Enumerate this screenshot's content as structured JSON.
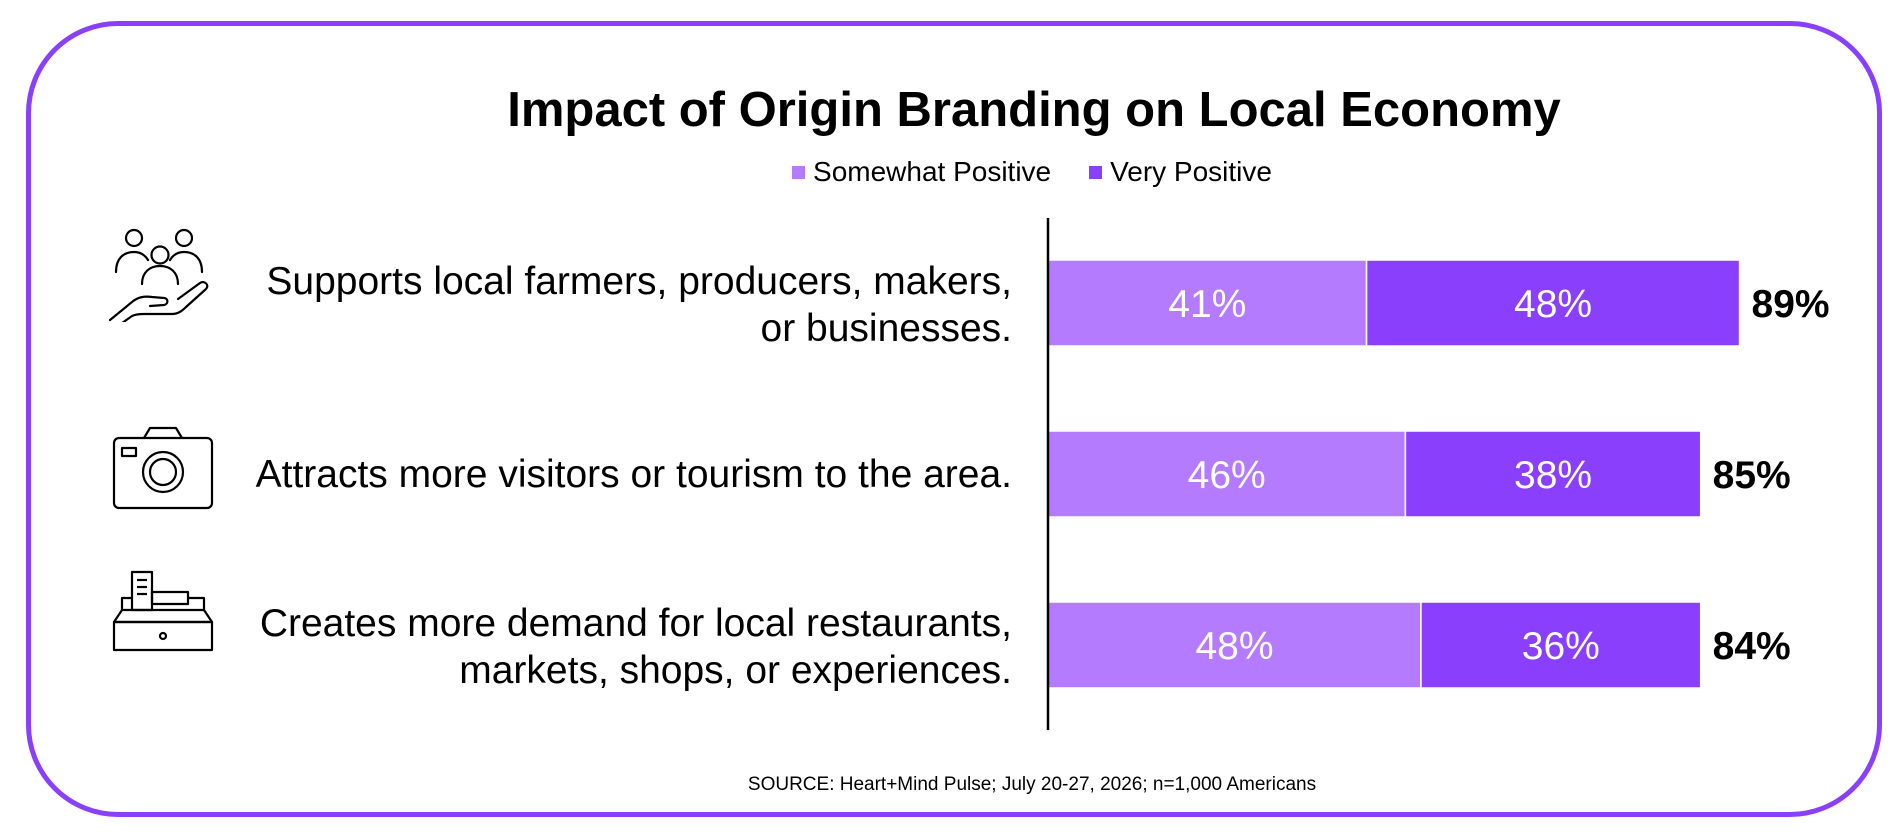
{
  "chart_data": {
    "type": "bar",
    "orientation": "horizontal",
    "stacked": true,
    "title": "Impact of Origin Branding on Local Economy",
    "categories": [
      [
        "Supports local farmers, producers, makers,",
        "or businesses."
      ],
      [
        "Attracts more visitors or tourism to the area."
      ],
      [
        "Creates more demand for local restaurants,",
        "markets, shops, or experiences."
      ]
    ],
    "series": [
      {
        "name": "Somewhat Positive",
        "color": "#B57BFF",
        "values": [
          41,
          46,
          48
        ],
        "labels": [
          "41%",
          "46%",
          "48%"
        ]
      },
      {
        "name": "Very Positive",
        "color": "#8A3FFC",
        "values": [
          48,
          38,
          36
        ],
        "labels": [
          "48%",
          "38%",
          "36%"
        ]
      }
    ],
    "totals": [
      "89%",
      "85%",
      "84%"
    ],
    "xlim": [
      0,
      100
    ],
    "grid": false,
    "legend_position": "top-center",
    "icons": [
      "hand-holding-people-icon",
      "camera-icon",
      "cash-register-icon"
    ]
  },
  "source_note": "SOURCE: Heart+Mind Pulse; July 20-27, 2026; n=1,000 Americans",
  "colors": {
    "frame": "#8A3FFC",
    "axis": "#000000",
    "bar_label": "#FFFFFF"
  }
}
